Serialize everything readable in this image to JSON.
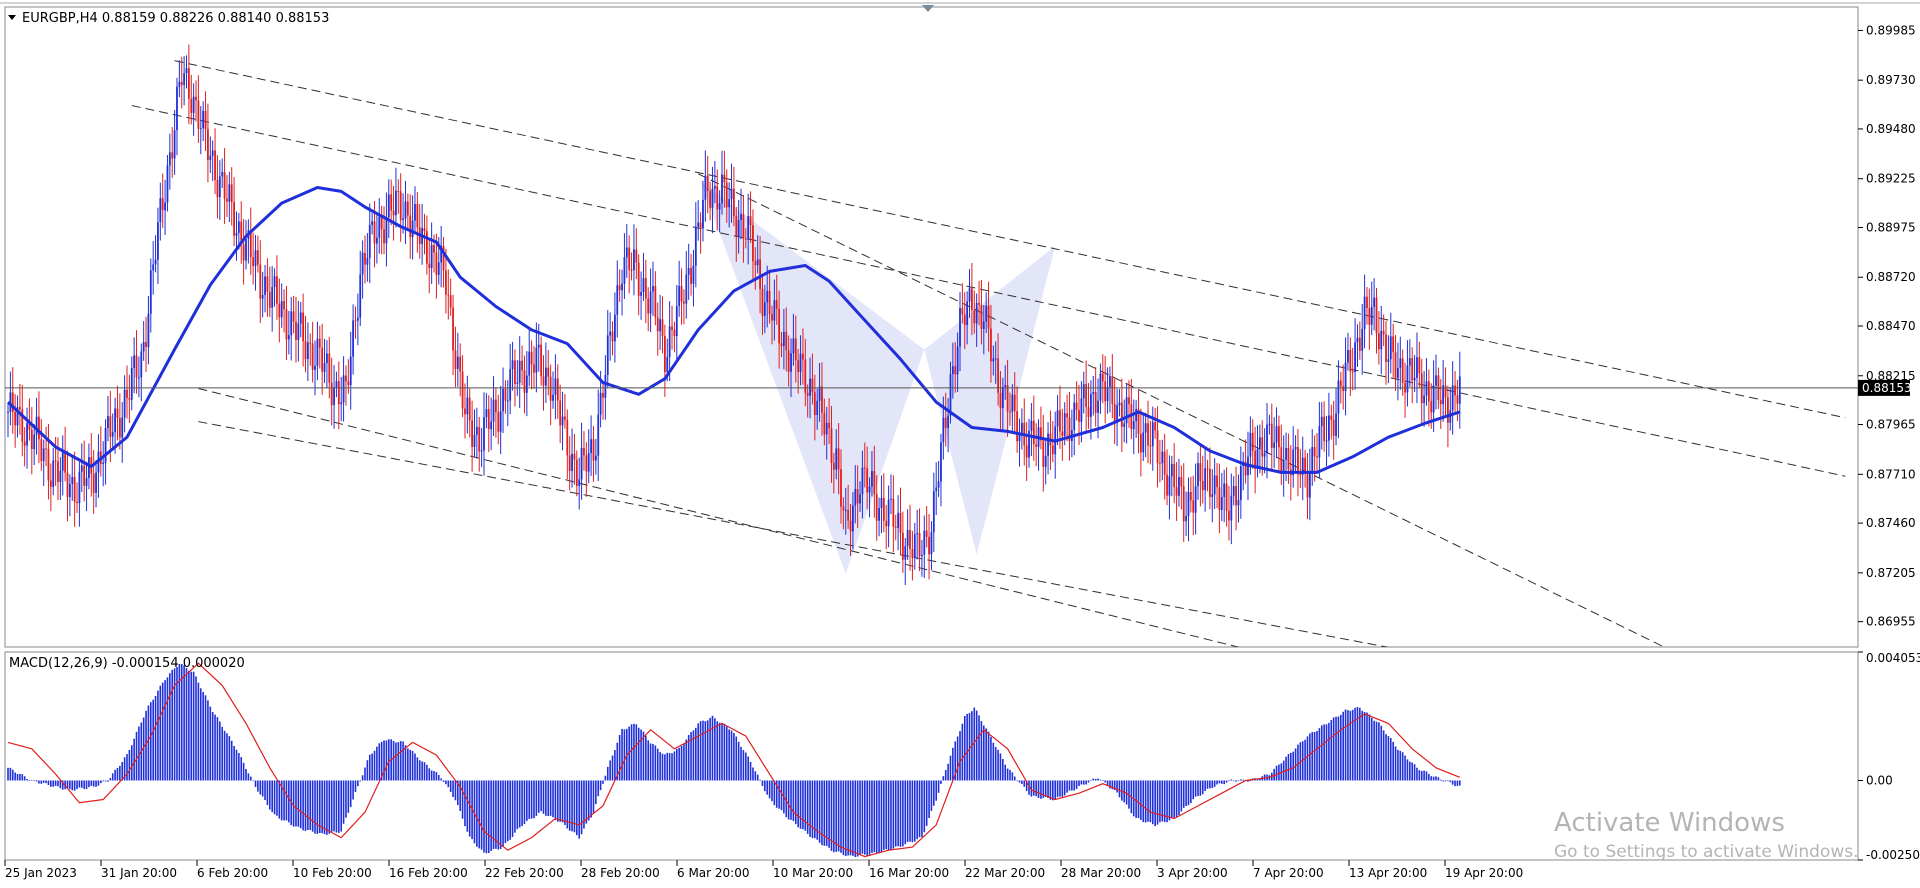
{
  "header": {
    "symbol_info": "EURGBP,H4  0.88159 0.88226 0.88140 0.88153",
    "toggle_icon": "triangle-down-icon"
  },
  "macd_header": {
    "info": "MACD(12,26,9) -0.000154 0.000020"
  },
  "price_tag": "0.88153",
  "watermark": {
    "line1": "Activate Windows",
    "line2": "Go to Settings to activate Windows."
  },
  "colors": {
    "ma_line": "#1f2fd9",
    "bull_candle": "#1f2fd9",
    "bear_candle": "#e01e1e",
    "macd_hist": "#1f2fd9",
    "macd_signal": "#e01e1e",
    "pattern_fill": "#d9dcf7",
    "trendline": "#303030",
    "price_tag_bg": "#000000"
  },
  "chart_data": [
    {
      "type": "candlestick",
      "symbol": "EURGBP",
      "timeframe": "H4",
      "ylim": [
        0.86825,
        0.90105
      ],
      "y_ticks": [
        "0.89985",
        "0.89730",
        "0.89480",
        "0.89225",
        "0.88975",
        "0.88720",
        "0.88470",
        "0.88215",
        "0.87965",
        "0.87710",
        "0.87460",
        "0.87205",
        "0.86955"
      ],
      "x_ticks": [
        "25 Jan 2023",
        "31 Jan 20:00",
        "6 Feb 20:00",
        "10 Feb 20:00",
        "16 Feb 20:00",
        "22 Feb 20:00",
        "28 Feb 20:00",
        "6 Mar 20:00",
        "10 Mar 20:00",
        "16 Mar 20:00",
        "22 Mar 20:00",
        "28 Mar 20:00",
        "3 Apr 20:00",
        "7 Apr 20:00",
        "13 Apr 20:00",
        "19 Apr 20:00"
      ],
      "current_price": 0.88153,
      "close_path": [
        [
          0,
          0.8803
        ],
        [
          10,
          0.8792
        ],
        [
          18,
          0.8775
        ],
        [
          28,
          0.8765
        ],
        [
          35,
          0.877
        ],
        [
          42,
          0.879
        ],
        [
          48,
          0.8805
        ],
        [
          56,
          0.883
        ],
        [
          62,
          0.8885
        ],
        [
          66,
          0.892
        ],
        [
          70,
          0.895
        ],
        [
          73,
          0.8975
        ],
        [
          77,
          0.8968
        ],
        [
          82,
          0.8945
        ],
        [
          88,
          0.8925
        ],
        [
          94,
          0.8905
        ],
        [
          100,
          0.8888
        ],
        [
          106,
          0.8872
        ],
        [
          112,
          0.886
        ],
        [
          118,
          0.885
        ],
        [
          124,
          0.884
        ],
        [
          130,
          0.8832
        ],
        [
          136,
          0.8818
        ],
        [
          142,
          0.881
        ],
        [
          148,
          0.8875
        ],
        [
          154,
          0.8895
        ],
        [
          160,
          0.8905
        ],
        [
          166,
          0.891
        ],
        [
          172,
          0.8895
        ],
        [
          178,
          0.8885
        ],
        [
          184,
          0.887
        ],
        [
          188,
          0.8835
        ],
        [
          192,
          0.88
        ],
        [
          198,
          0.879
        ],
        [
          204,
          0.88
        ],
        [
          210,
          0.8815
        ],
        [
          216,
          0.8825
        ],
        [
          222,
          0.8828
        ],
        [
          228,
          0.882
        ],
        [
          234,
          0.879
        ],
        [
          240,
          0.877
        ],
        [
          246,
          0.8785
        ],
        [
          252,
          0.883
        ],
        [
          258,
          0.888
        ],
        [
          264,
          0.8875
        ],
        [
          270,
          0.886
        ],
        [
          276,
          0.8835
        ],
        [
          282,
          0.8855
        ],
        [
          288,
          0.8885
        ],
        [
          294,
          0.8918
        ],
        [
          300,
          0.8915
        ],
        [
          306,
          0.8905
        ],
        [
          312,
          0.889
        ],
        [
          318,
          0.886
        ],
        [
          324,
          0.8845
        ],
        [
          330,
          0.883
        ],
        [
          336,
          0.882
        ],
        [
          342,
          0.88
        ],
        [
          348,
          0.878
        ],
        [
          352,
          0.874
        ],
        [
          358,
          0.877
        ],
        [
          364,
          0.876
        ],
        [
          370,
          0.875
        ],
        [
          376,
          0.874
        ],
        [
          382,
          0.873
        ],
        [
          388,
          0.8745
        ],
        [
          392,
          0.878
        ],
        [
          396,
          0.882
        ],
        [
          400,
          0.8845
        ],
        [
          405,
          0.8862
        ],
        [
          410,
          0.885
        ],
        [
          416,
          0.882
        ],
        [
          422,
          0.88
        ],
        [
          428,
          0.879
        ],
        [
          434,
          0.8785
        ],
        [
          440,
          0.879
        ],
        [
          446,
          0.88
        ],
        [
          452,
          0.8805
        ],
        [
          458,
          0.8815
        ],
        [
          464,
          0.881
        ],
        [
          470,
          0.88
        ],
        [
          476,
          0.8795
        ],
        [
          482,
          0.8785
        ],
        [
          488,
          0.877
        ],
        [
          494,
          0.8755
        ],
        [
          500,
          0.8765
        ],
        [
          506,
          0.877
        ],
        [
          512,
          0.875
        ],
        [
          516,
          0.8765
        ],
        [
          522,
          0.878
        ],
        [
          528,
          0.879
        ],
        [
          534,
          0.8785
        ],
        [
          540,
          0.8775
        ],
        [
          546,
          0.8772
        ],
        [
          552,
          0.879
        ],
        [
          558,
          0.8805
        ],
        [
          564,
          0.883
        ],
        [
          570,
          0.885
        ],
        [
          574,
          0.8855
        ],
        [
          580,
          0.883
        ],
        [
          586,
          0.8825
        ],
        [
          592,
          0.882
        ],
        [
          598,
          0.8812
        ],
        [
          604,
          0.8808
        ],
        [
          610,
          0.8815
        ]
      ],
      "moving_average": [
        [
          0,
          0.8808
        ],
        [
          20,
          0.8785
        ],
        [
          35,
          0.8775
        ],
        [
          50,
          0.879
        ],
        [
          70,
          0.8835
        ],
        [
          85,
          0.8868
        ],
        [
          100,
          0.8893
        ],
        [
          115,
          0.891
        ],
        [
          130,
          0.8918
        ],
        [
          140,
          0.8916
        ],
        [
          150,
          0.8908
        ],
        [
          165,
          0.8898
        ],
        [
          180,
          0.889
        ],
        [
          190,
          0.8872
        ],
        [
          205,
          0.8857
        ],
        [
          220,
          0.8845
        ],
        [
          235,
          0.8838
        ],
        [
          250,
          0.8818
        ],
        [
          265,
          0.8812
        ],
        [
          276,
          0.882
        ],
        [
          290,
          0.8845
        ],
        [
          305,
          0.8865
        ],
        [
          320,
          0.8875
        ],
        [
          335,
          0.8878
        ],
        [
          345,
          0.887
        ],
        [
          360,
          0.885
        ],
        [
          375,
          0.883
        ],
        [
          390,
          0.8808
        ],
        [
          405,
          0.8795
        ],
        [
          420,
          0.8793
        ],
        [
          440,
          0.8788
        ],
        [
          460,
          0.8795
        ],
        [
          475,
          0.8803
        ],
        [
          490,
          0.8795
        ],
        [
          505,
          0.8783
        ],
        [
          520,
          0.8776
        ],
        [
          535,
          0.8772
        ],
        [
          550,
          0.8772
        ],
        [
          565,
          0.878
        ],
        [
          580,
          0.879
        ],
        [
          595,
          0.8797
        ],
        [
          610,
          0.8803
        ]
      ],
      "trendlines": [
        [
          [
            70,
            0.8983
          ],
          [
            772,
            0.88
          ]
        ],
        [
          [
            52,
            0.896
          ],
          [
            772,
            0.877
          ]
        ],
        [
          [
            80,
            0.8815
          ],
          [
            525,
            0.868
          ]
        ],
        [
          [
            80,
            0.8798
          ],
          [
            590,
            0.868
          ]
        ],
        [
          [
            290,
            0.8925
          ],
          [
            700,
            0.868
          ]
        ]
      ],
      "pattern": [
        [
          291,
          0.8921
        ],
        [
          352,
          0.872
        ],
        [
          385,
          0.8835
        ],
        [
          407,
          0.873
        ],
        [
          440,
          0.8888
        ]
      ]
    },
    {
      "type": "bar",
      "indicator": "MACD(12,26,9)",
      "ylim": [
        -0.002508,
        0.004053
      ],
      "y_ticks": [
        "0.004053",
        "0.00",
        "-0.002508"
      ],
      "histogram_path": [
        [
          0,
          0.0004
        ],
        [
          10,
          0.0
        ],
        [
          20,
          -0.0002
        ],
        [
          26,
          -0.0003
        ],
        [
          36,
          -0.0002
        ],
        [
          42,
          0.0
        ],
        [
          50,
          0.0008
        ],
        [
          58,
          0.0022
        ],
        [
          66,
          0.0032
        ],
        [
          72,
          0.0037
        ],
        [
          78,
          0.0034
        ],
        [
          86,
          0.0022
        ],
        [
          96,
          0.001
        ],
        [
          104,
          -0.0002
        ],
        [
          112,
          -0.0011
        ],
        [
          122,
          -0.0015
        ],
        [
          132,
          -0.0017
        ],
        [
          140,
          -0.0016
        ],
        [
          146,
          -0.0004
        ],
        [
          152,
          0.0008
        ],
        [
          158,
          0.0013
        ],
        [
          166,
          0.0012
        ],
        [
          174,
          0.0006
        ],
        [
          182,
          0.0001
        ],
        [
          188,
          -0.0006
        ],
        [
          194,
          -0.0018
        ],
        [
          200,
          -0.0023
        ],
        [
          208,
          -0.0021
        ],
        [
          216,
          -0.0014
        ],
        [
          224,
          -0.001
        ],
        [
          232,
          -0.0013
        ],
        [
          240,
          -0.0018
        ],
        [
          246,
          -0.001
        ],
        [
          252,
          0.0004
        ],
        [
          258,
          0.0016
        ],
        [
          264,
          0.0018
        ],
        [
          270,
          0.0012
        ],
        [
          276,
          0.0008
        ],
        [
          282,
          0.001
        ],
        [
          290,
          0.0018
        ],
        [
          296,
          0.002
        ],
        [
          304,
          0.0016
        ],
        [
          312,
          0.0006
        ],
        [
          320,
          -0.0006
        ],
        [
          328,
          -0.0012
        ],
        [
          338,
          -0.0018
        ],
        [
          346,
          -0.0022
        ],
        [
          354,
          -0.0024
        ],
        [
          364,
          -0.0023
        ],
        [
          374,
          -0.0021
        ],
        [
          384,
          -0.0018
        ],
        [
          390,
          -0.0006
        ],
        [
          396,
          0.0008
        ],
        [
          402,
          0.002
        ],
        [
          406,
          0.0023
        ],
        [
          412,
          0.0015
        ],
        [
          420,
          0.0004
        ],
        [
          430,
          -0.0005
        ],
        [
          440,
          -0.0006
        ],
        [
          450,
          -0.0002
        ],
        [
          458,
          0.0001
        ],
        [
          466,
          -0.0004
        ],
        [
          474,
          -0.0012
        ],
        [
          482,
          -0.0014
        ],
        [
          490,
          -0.0012
        ],
        [
          498,
          -0.0006
        ],
        [
          506,
          -0.0002
        ],
        [
          514,
          0.0
        ],
        [
          522,
          0.0
        ],
        [
          530,
          0.0002
        ],
        [
          538,
          0.0008
        ],
        [
          546,
          0.0014
        ],
        [
          554,
          0.0018
        ],
        [
          562,
          0.0022
        ],
        [
          568,
          0.0023
        ],
        [
          576,
          0.0018
        ],
        [
          584,
          0.001
        ],
        [
          592,
          0.0004
        ],
        [
          600,
          0.0001
        ],
        [
          610,
          -0.0002
        ]
      ],
      "signal_path": [
        [
          0,
          0.0012
        ],
        [
          10,
          0.001
        ],
        [
          20,
          0.0002
        ],
        [
          30,
          -0.0007
        ],
        [
          40,
          -0.0006
        ],
        [
          50,
          0.0002
        ],
        [
          60,
          0.0014
        ],
        [
          70,
          0.003
        ],
        [
          80,
          0.0037
        ],
        [
          90,
          0.003
        ],
        [
          100,
          0.0018
        ],
        [
          110,
          0.0004
        ],
        [
          120,
          -0.0008
        ],
        [
          130,
          -0.0014
        ],
        [
          140,
          -0.0018
        ],
        [
          150,
          -0.001
        ],
        [
          160,
          0.0006
        ],
        [
          170,
          0.0012
        ],
        [
          180,
          0.0008
        ],
        [
          190,
          -0.0002
        ],
        [
          200,
          -0.0016
        ],
        [
          210,
          -0.0022
        ],
        [
          220,
          -0.0018
        ],
        [
          230,
          -0.0012
        ],
        [
          240,
          -0.0014
        ],
        [
          250,
          -0.0008
        ],
        [
          260,
          0.0008
        ],
        [
          270,
          0.0016
        ],
        [
          280,
          0.001
        ],
        [
          290,
          0.0014
        ],
        [
          300,
          0.0018
        ],
        [
          310,
          0.0014
        ],
        [
          320,
          0.0002
        ],
        [
          330,
          -0.001
        ],
        [
          340,
          -0.0016
        ],
        [
          350,
          -0.0021
        ],
        [
          360,
          -0.0024
        ],
        [
          370,
          -0.0022
        ],
        [
          380,
          -0.0021
        ],
        [
          390,
          -0.0014
        ],
        [
          400,
          0.0006
        ],
        [
          410,
          0.0016
        ],
        [
          420,
          0.001
        ],
        [
          430,
          -0.0003
        ],
        [
          440,
          -0.0006
        ],
        [
          450,
          -0.0004
        ],
        [
          460,
          -0.0001
        ],
        [
          470,
          -0.0004
        ],
        [
          480,
          -0.001
        ],
        [
          490,
          -0.0012
        ],
        [
          500,
          -0.0008
        ],
        [
          510,
          -0.0004
        ],
        [
          520,
          0.0
        ],
        [
          530,
          0.0001
        ],
        [
          540,
          0.0004
        ],
        [
          550,
          0.001
        ],
        [
          560,
          0.0016
        ],
        [
          570,
          0.0021
        ],
        [
          580,
          0.0018
        ],
        [
          590,
          0.001
        ],
        [
          600,
          0.0004
        ],
        [
          610,
          0.0001
        ]
      ]
    }
  ]
}
